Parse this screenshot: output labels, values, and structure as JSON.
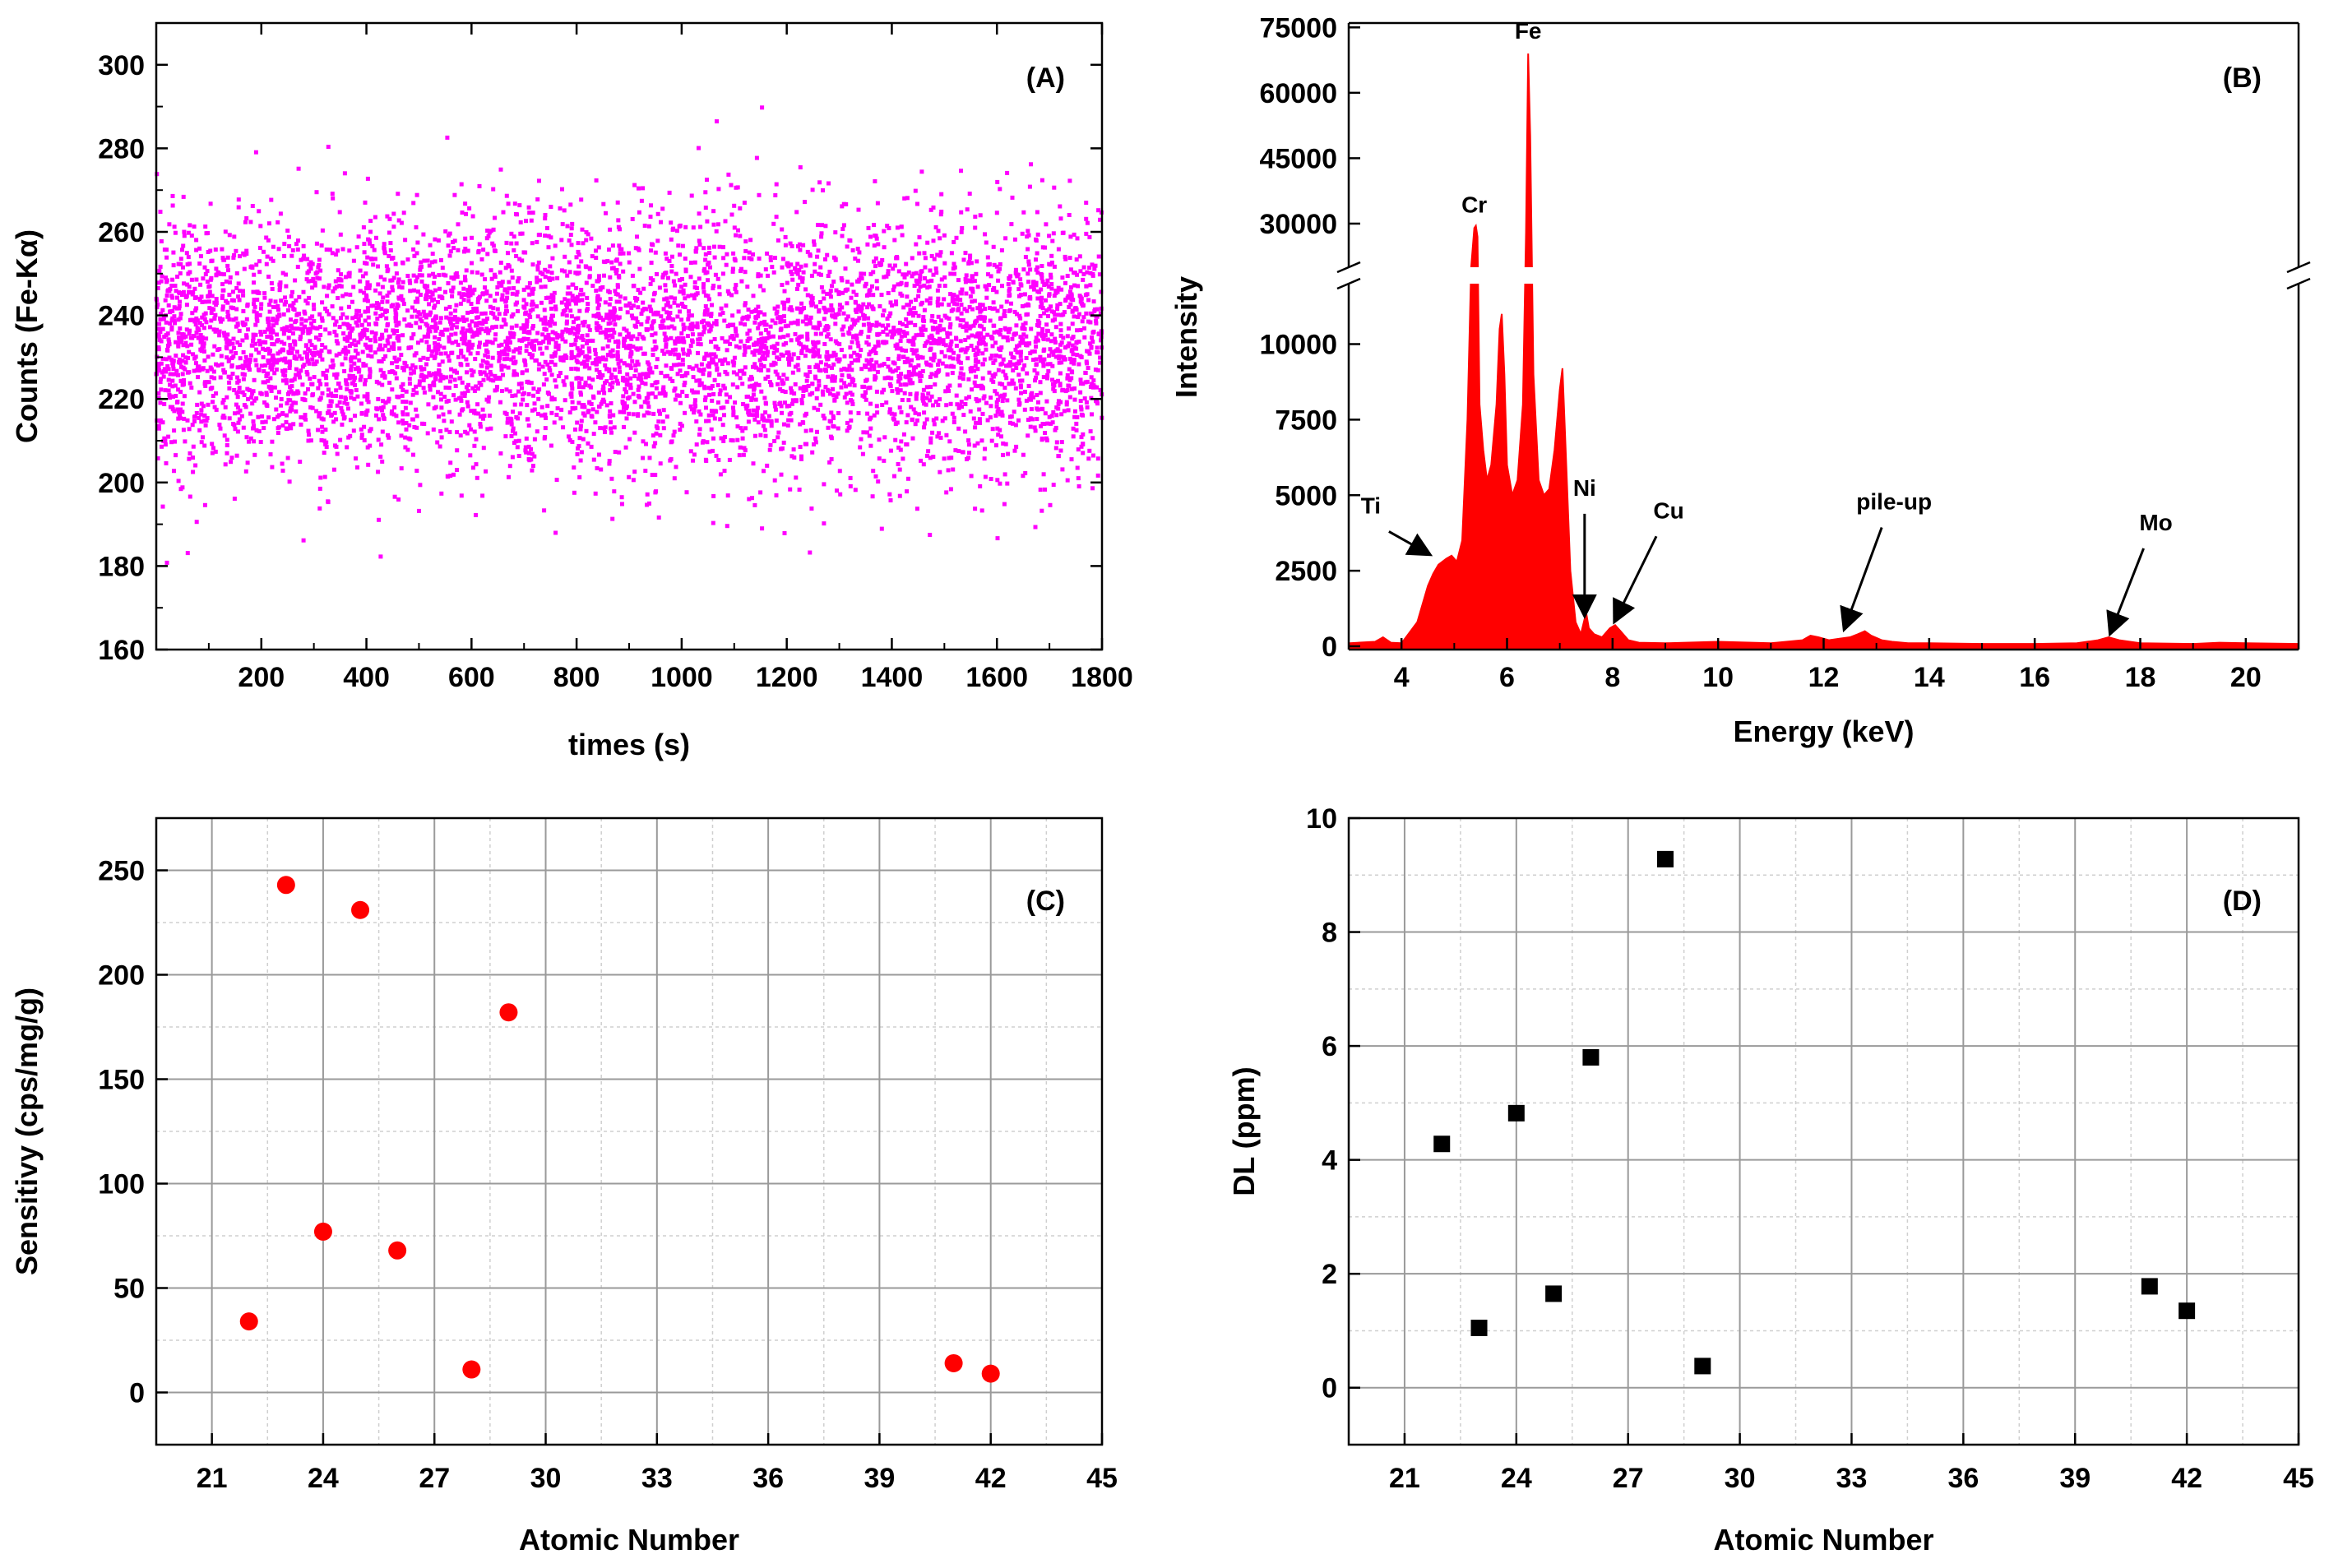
{
  "chart_data": [
    {
      "panel": "(A)",
      "type": "scatter",
      "title": "",
      "xlabel": "times (s)",
      "ylabel": "Counts (Fe-Kα)",
      "xlim": [
        0,
        1800
      ],
      "ylim": [
        160,
        310
      ],
      "xticks": [
        200,
        400,
        600,
        800,
        1000,
        1200,
        1400,
        1600,
        1800
      ],
      "yticks": [
        160,
        180,
        200,
        220,
        240,
        260,
        280,
        300
      ],
      "color": "#ff00ff",
      "grid": false,
      "series": [
        {
          "name": "Fe-Kα counts",
          "mean": 233,
          "std": 15,
          "n_points": 6000,
          "min": 175,
          "max": 293
        }
      ]
    },
    {
      "panel": "(B)",
      "type": "area",
      "title": "",
      "xlabel": "Energy (keV)",
      "ylabel": "Intensity",
      "xlim": [
        3,
        21
      ],
      "ylim_lower": [
        0,
        12000
      ],
      "ylim_upper": [
        20000,
        76000
      ],
      "axis_break": "y",
      "xticks": [
        4,
        6,
        8,
        10,
        12,
        14,
        16,
        18,
        20
      ],
      "yticks_lower": [
        0,
        2500,
        5000,
        7500,
        10000
      ],
      "yticks_upper": [
        30000,
        45000,
        60000,
        75000
      ],
      "color": "#ff0000",
      "grid": false,
      "x": [
        3.0,
        3.5,
        3.65,
        3.8,
        4.0,
        4.3,
        4.5,
        4.6,
        4.7,
        4.85,
        4.95,
        5.05,
        5.15,
        5.25,
        5.32,
        5.38,
        5.41,
        5.44,
        5.48,
        5.55,
        5.62,
        5.7,
        5.8,
        5.86,
        5.9,
        5.95,
        6.0,
        6.1,
        6.2,
        6.3,
        6.36,
        6.4,
        6.44,
        6.5,
        6.6,
        6.7,
        6.8,
        6.9,
        7.0,
        7.05,
        7.1,
        7.2,
        7.3,
        7.4,
        7.47,
        7.5,
        7.55,
        7.65,
        7.8,
        7.95,
        8.05,
        8.15,
        8.3,
        8.5,
        9.0,
        10.0,
        11.0,
        11.6,
        11.75,
        11.9,
        12.1,
        12.3,
        12.5,
        12.65,
        12.78,
        12.9,
        13.1,
        13.3,
        13.6,
        14.0,
        15.0,
        16.0,
        16.8,
        17.2,
        17.4,
        17.6,
        18.0,
        19.0,
        19.5,
        20.0,
        21.0
      ],
      "values": [
        100,
        150,
        300,
        120,
        100,
        800,
        2000,
        2400,
        2700,
        2900,
        3000,
        2800,
        3500,
        7500,
        20000,
        29000,
        29500,
        27000,
        8000,
        6500,
        5500,
        6000,
        8000,
        10500,
        11000,
        9000,
        6000,
        5000,
        5500,
        8000,
        28000,
        69000,
        50000,
        9000,
        5500,
        5000,
        5200,
        6500,
        8500,
        9200,
        7000,
        2500,
        800,
        400,
        900,
        1100,
        600,
        400,
        300,
        600,
        700,
        500,
        200,
        120,
        100,
        150,
        100,
        200,
        350,
        300,
        200,
        250,
        300,
        400,
        500,
        350,
        200,
        150,
        100,
        100,
        80,
        80,
        100,
        200,
        300,
        200,
        100,
        80,
        120,
        100,
        80
      ],
      "annotations": [
        {
          "label": "Fe",
          "x": 6.4,
          "y": 69000
        },
        {
          "label": "Cr",
          "x": 5.41,
          "y": 29500
        },
        {
          "label": "Ti",
          "x": 4.51,
          "y": 2900,
          "arrow": true
        },
        {
          "label": "Ni",
          "x": 7.47,
          "y": 900,
          "arrow": true
        },
        {
          "label": "Cu",
          "x": 8.05,
          "y": 700,
          "arrow": true
        },
        {
          "label": "pile-up",
          "x": 12.4,
          "y": 450,
          "arrow": true
        },
        {
          "label": "Mo",
          "x": 17.44,
          "y": 300,
          "arrow": true
        }
      ]
    },
    {
      "panel": "(C)",
      "type": "scatter",
      "title": "",
      "xlabel": "Atomic Number",
      "ylabel": "Sensitivy (cps/mg/g)",
      "xlim": [
        19.5,
        45
      ],
      "ylim": [
        -25,
        275
      ],
      "xticks": [
        21,
        24,
        27,
        30,
        33,
        36,
        39,
        42,
        45
      ],
      "yticks": [
        0,
        50,
        100,
        150,
        200,
        250
      ],
      "grid": true,
      "marker": "circle",
      "color": "#ff0000",
      "x": [
        22,
        23,
        24,
        25,
        26,
        28,
        29,
        41,
        42
      ],
      "values": [
        34,
        243,
        77,
        231,
        68,
        11,
        182,
        14,
        9
      ]
    },
    {
      "panel": "(D)",
      "type": "scatter",
      "title": "",
      "xlabel": "Atomic Number",
      "ylabel": "DL (ppm)",
      "xlim": [
        19.5,
        45
      ],
      "ylim": [
        -1,
        10
      ],
      "xticks": [
        21,
        24,
        27,
        30,
        33,
        36,
        39,
        42,
        45
      ],
      "yticks": [
        0,
        2,
        4,
        6,
        8,
        10
      ],
      "grid": true,
      "marker": "square",
      "color": "#000000",
      "x": [
        22,
        23,
        24,
        25,
        26,
        28,
        29,
        41,
        42
      ],
      "values": [
        4.28,
        1.05,
        4.82,
        1.65,
        5.8,
        9.28,
        0.38,
        1.78,
        1.35
      ]
    }
  ]
}
